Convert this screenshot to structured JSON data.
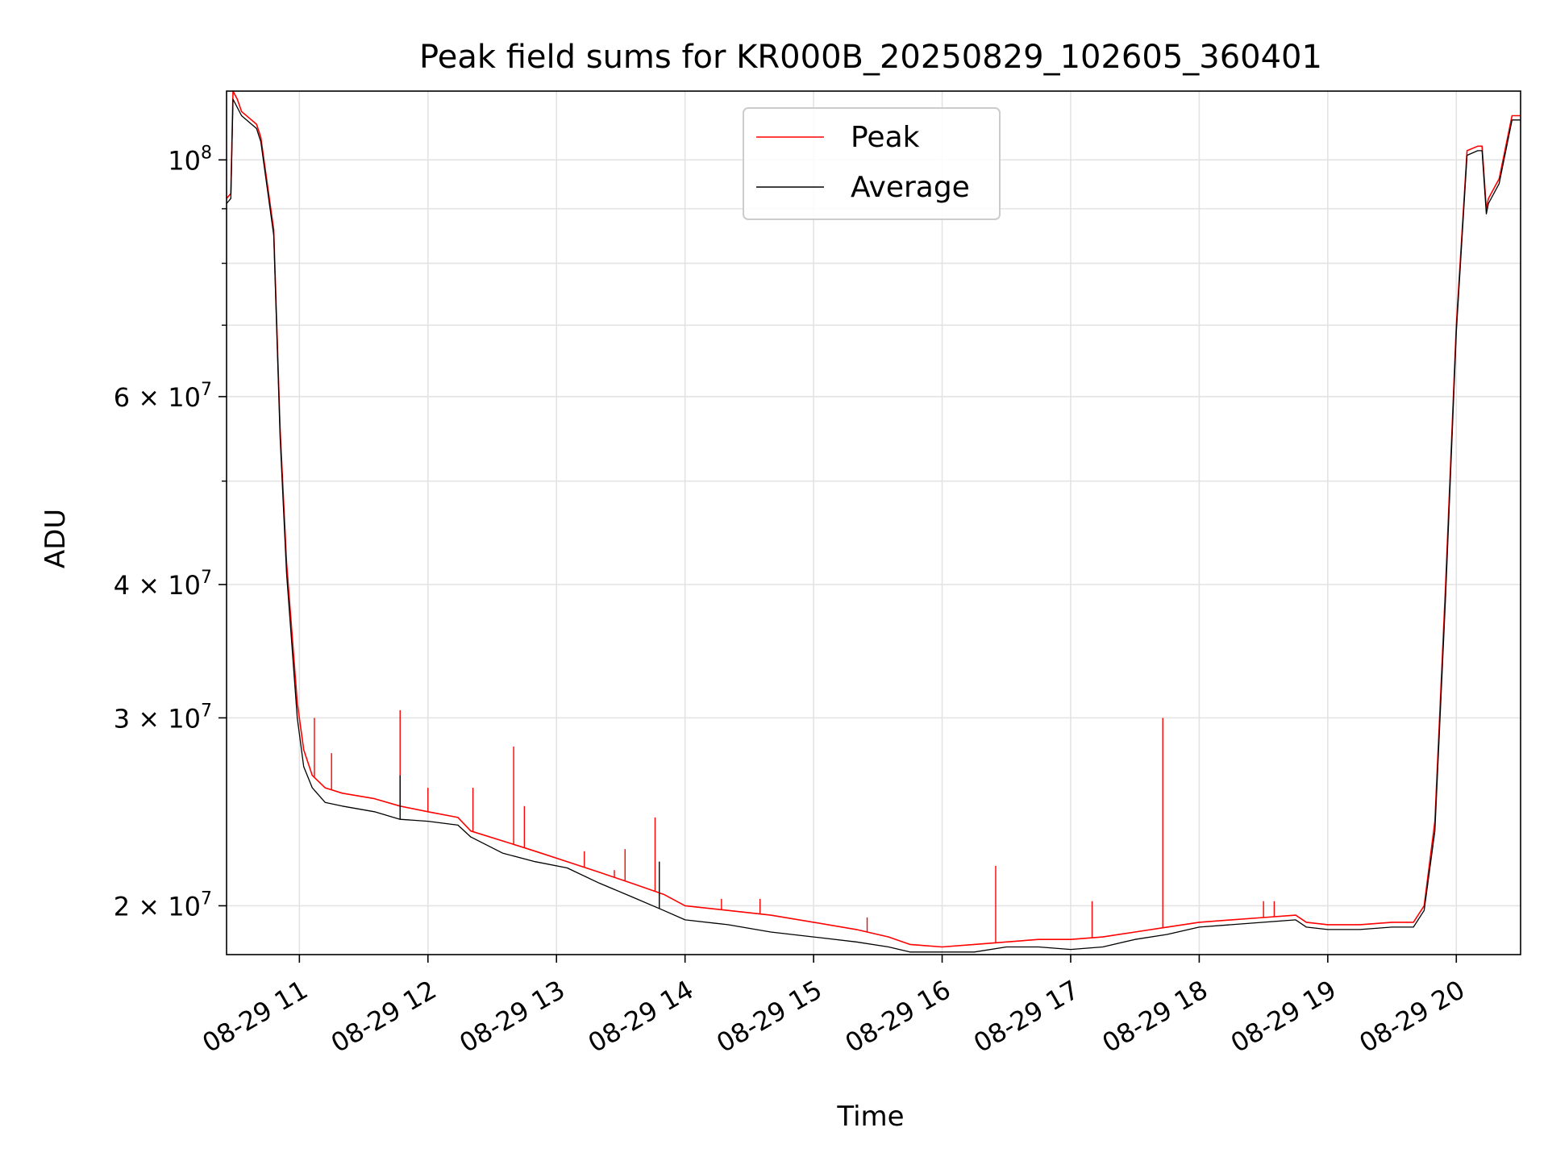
{
  "chart_data": {
    "type": "line",
    "title": "Peak field sums for KR000B_20250829_102605_360401",
    "xlabel": "Time",
    "ylabel": "ADU",
    "yscale": "log",
    "xlim": [
      "2025-08-29 10:26",
      "2025-08-29 20:30"
    ],
    "ylim": [
      18000000,
      116000000
    ],
    "grid": true,
    "legend_position": "top-center",
    "x_tick_labels": [
      "08-29 11",
      "08-29 12",
      "08-29 13",
      "08-29 14",
      "08-29 15",
      "08-29 16",
      "08-29 17",
      "08-29 18",
      "08-29 19",
      "08-29 20"
    ],
    "x_ticks": [
      "2025-08-29 11:00",
      "2025-08-29 12:00",
      "2025-08-29 13:00",
      "2025-08-29 14:00",
      "2025-08-29 15:00",
      "2025-08-29 16:00",
      "2025-08-29 17:00",
      "2025-08-29 18:00",
      "2025-08-29 19:00",
      "2025-08-29 20:00"
    ],
    "y_ticks": [
      {
        "value": 20000000,
        "mant": "2",
        "exp": "7"
      },
      {
        "value": 30000000,
        "mant": "3",
        "exp": "7"
      },
      {
        "value": 40000000,
        "mant": "4",
        "exp": "7"
      },
      {
        "value": 60000000,
        "mant": "6",
        "exp": "7"
      },
      {
        "value": 100000000,
        "mant": "",
        "exp": "8"
      }
    ],
    "y_minor_ticks": [
      50000000,
      70000000,
      80000000,
      90000000
    ],
    "series": [
      {
        "name": "Peak",
        "color": "#ff0000",
        "x": [
          "2025-08-29 10:26",
          "2025-08-29 10:28",
          "2025-08-29 10:29",
          "2025-08-29 10:31",
          "2025-08-29 10:33",
          "2025-08-29 10:40",
          "2025-08-29 10:42",
          "2025-08-29 10:48",
          "2025-08-29 10:51",
          "2025-08-29 10:54",
          "2025-08-29 10:57",
          "2025-08-29 10:59",
          "2025-08-29 11:02",
          "2025-08-29 11:06",
          "2025-08-29 11:12",
          "2025-08-29 11:20",
          "2025-08-29 11:35",
          "2025-08-29 11:47",
          "2025-08-29 12:00",
          "2025-08-29 12:14",
          "2025-08-29 12:20",
          "2025-08-29 12:35",
          "2025-08-29 12:50",
          "2025-08-29 13:05",
          "2025-08-29 13:20",
          "2025-08-29 13:35",
          "2025-08-29 13:50",
          "2025-08-29 14:00",
          "2025-08-29 14:20",
          "2025-08-29 14:40",
          "2025-08-29 15:00",
          "2025-08-29 15:20",
          "2025-08-29 15:35",
          "2025-08-29 15:45",
          "2025-08-29 16:00",
          "2025-08-29 16:15",
          "2025-08-29 16:30",
          "2025-08-29 16:45",
          "2025-08-29 17:00",
          "2025-08-29 17:15",
          "2025-08-29 17:30",
          "2025-08-29 17:45",
          "2025-08-29 18:00",
          "2025-08-29 18:15",
          "2025-08-29 18:30",
          "2025-08-29 18:45",
          "2025-08-29 18:50",
          "2025-08-29 19:00",
          "2025-08-29 19:15",
          "2025-08-29 19:30",
          "2025-08-29 19:40",
          "2025-08-29 19:45",
          "2025-08-29 19:50",
          "2025-08-29 19:55",
          "2025-08-29 20:00",
          "2025-08-29 20:05",
          "2025-08-29 20:10",
          "2025-08-29 20:12",
          "2025-08-29 20:14",
          "2025-08-29 20:15",
          "2025-08-29 20:20",
          "2025-08-29 20:26",
          "2025-08-29 20:30"
        ],
        "y": [
          92000000,
          93000000,
          116000000,
          114000000,
          111000000,
          108000000,
          105000000,
          86000000,
          56000000,
          42000000,
          35000000,
          31000000,
          28000000,
          26500000,
          25800000,
          25500000,
          25200000,
          24800000,
          24500000,
          24200000,
          23500000,
          23000000,
          22500000,
          22000000,
          21500000,
          21000000,
          20500000,
          20000000,
          19800000,
          19600000,
          19300000,
          19000000,
          18700000,
          18400000,
          18300000,
          18400000,
          18500000,
          18600000,
          18600000,
          18700000,
          18900000,
          19100000,
          19300000,
          19400000,
          19500000,
          19600000,
          19300000,
          19200000,
          19200000,
          19300000,
          19300000,
          20000000,
          24000000,
          40000000,
          70000000,
          102000000,
          103000000,
          103000000,
          90000000,
          92000000,
          96000000,
          110000000,
          110000000
        ]
      },
      {
        "name": "Average",
        "color": "#000000",
        "x": [
          "2025-08-29 10:26",
          "2025-08-29 10:28",
          "2025-08-29 10:29",
          "2025-08-29 10:31",
          "2025-08-29 10:33",
          "2025-08-29 10:40",
          "2025-08-29 10:42",
          "2025-08-29 10:48",
          "2025-08-29 10:51",
          "2025-08-29 10:54",
          "2025-08-29 10:57",
          "2025-08-29 10:59",
          "2025-08-29 11:02",
          "2025-08-29 11:06",
          "2025-08-29 11:12",
          "2025-08-29 11:20",
          "2025-08-29 11:35",
          "2025-08-29 11:47",
          "2025-08-29 12:00",
          "2025-08-29 12:14",
          "2025-08-29 12:20",
          "2025-08-29 12:35",
          "2025-08-29 12:50",
          "2025-08-29 13:05",
          "2025-08-29 13:20",
          "2025-08-29 13:35",
          "2025-08-29 13:50",
          "2025-08-29 14:00",
          "2025-08-29 14:20",
          "2025-08-29 14:40",
          "2025-08-29 15:00",
          "2025-08-29 15:20",
          "2025-08-29 15:35",
          "2025-08-29 15:45",
          "2025-08-29 16:00",
          "2025-08-29 16:15",
          "2025-08-29 16:30",
          "2025-08-29 16:45",
          "2025-08-29 17:00",
          "2025-08-29 17:15",
          "2025-08-29 17:30",
          "2025-08-29 17:45",
          "2025-08-29 18:00",
          "2025-08-29 18:15",
          "2025-08-29 18:30",
          "2025-08-29 18:45",
          "2025-08-29 18:50",
          "2025-08-29 19:00",
          "2025-08-29 19:15",
          "2025-08-29 19:30",
          "2025-08-29 19:40",
          "2025-08-29 19:45",
          "2025-08-29 19:50",
          "2025-08-29 19:55",
          "2025-08-29 20:00",
          "2025-08-29 20:05",
          "2025-08-29 20:10",
          "2025-08-29 20:12",
          "2025-08-29 20:14",
          "2025-08-29 20:15",
          "2025-08-29 20:20",
          "2025-08-29 20:26",
          "2025-08-29 20:30"
        ],
        "y": [
          91000000,
          92000000,
          114000000,
          112000000,
          110000000,
          107000000,
          104000000,
          85000000,
          55000000,
          41000000,
          34000000,
          30000000,
          27000000,
          25800000,
          25000000,
          24800000,
          24500000,
          24100000,
          24000000,
          23800000,
          23200000,
          22400000,
          22000000,
          21700000,
          21000000,
          20400000,
          19800000,
          19400000,
          19200000,
          18900000,
          18700000,
          18500000,
          18300000,
          18100000,
          18100000,
          18100000,
          18300000,
          18300000,
          18200000,
          18300000,
          18600000,
          18800000,
          19100000,
          19200000,
          19300000,
          19400000,
          19100000,
          19000000,
          19000000,
          19100000,
          19100000,
          19800000,
          23500000,
          39000000,
          69000000,
          101000000,
          102000000,
          102000000,
          89000000,
          91000000,
          95000000,
          109000000,
          109000000
        ]
      }
    ],
    "spikes_peak": [
      {
        "x": "2025-08-29 11:07",
        "y": 30000000
      },
      {
        "x": "2025-08-29 11:15",
        "y": 27800000
      },
      {
        "x": "2025-08-29 11:47",
        "y": 30500000
      },
      {
        "x": "2025-08-29 12:00",
        "y": 25800000
      },
      {
        "x": "2025-08-29 12:21",
        "y": 25800000
      },
      {
        "x": "2025-08-29 12:40",
        "y": 28200000
      },
      {
        "x": "2025-08-29 12:45",
        "y": 24800000
      },
      {
        "x": "2025-08-29 13:13",
        "y": 22500000
      },
      {
        "x": "2025-08-29 13:27",
        "y": 21600000
      },
      {
        "x": "2025-08-29 13:32",
        "y": 22600000
      },
      {
        "x": "2025-08-29 13:46",
        "y": 24200000
      },
      {
        "x": "2025-08-29 14:17",
        "y": 20300000
      },
      {
        "x": "2025-08-29 14:35",
        "y": 20300000
      },
      {
        "x": "2025-08-29 15:25",
        "y": 19500000
      },
      {
        "x": "2025-08-29 16:25",
        "y": 21800000
      },
      {
        "x": "2025-08-29 17:10",
        "y": 20200000
      },
      {
        "x": "2025-08-29 17:43",
        "y": 30000000
      },
      {
        "x": "2025-08-29 18:30",
        "y": 20200000
      },
      {
        "x": "2025-08-29 18:35",
        "y": 20200000
      }
    ],
    "spikes_average": [
      {
        "x": "2025-08-29 11:47",
        "y": 26500000
      },
      {
        "x": "2025-08-29 13:48",
        "y": 22000000
      }
    ]
  }
}
